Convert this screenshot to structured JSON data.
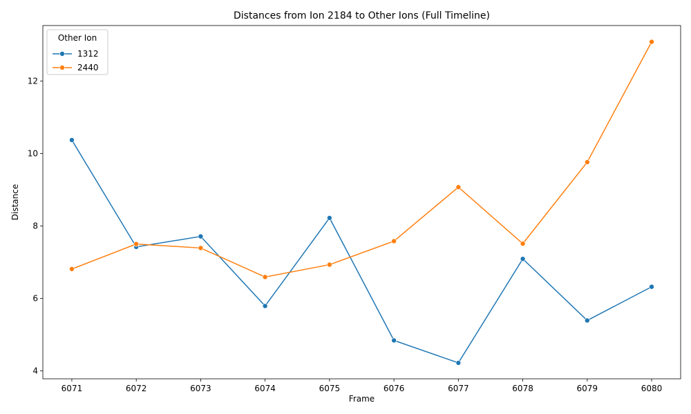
{
  "chart_data": {
    "type": "line",
    "title": "Distances from Ion 2184 to Other Ions (Full Timeline)",
    "xlabel": "Frame",
    "ylabel": "Distance",
    "x": [
      6071,
      6072,
      6073,
      6074,
      6075,
      6076,
      6077,
      6078,
      6079,
      6080
    ],
    "xlim": [
      6070.55,
      6080.45
    ],
    "ylim": [
      3.78,
      13.53
    ],
    "yticks": [
      4,
      6,
      8,
      10,
      12
    ],
    "grid": false,
    "legend": {
      "title": "Other Ion",
      "placement": "top-left"
    },
    "series": [
      {
        "name": "1312",
        "color": "#1f77b4",
        "marker": "circle",
        "values": [
          10.37,
          7.42,
          7.71,
          5.79,
          8.22,
          4.84,
          4.22,
          7.09,
          5.39,
          6.32
        ]
      },
      {
        "name": "2440",
        "color": "#ff7f0e",
        "marker": "circle",
        "values": [
          6.81,
          7.5,
          7.39,
          6.59,
          6.93,
          7.58,
          9.07,
          7.51,
          9.76,
          13.08
        ]
      }
    ]
  }
}
